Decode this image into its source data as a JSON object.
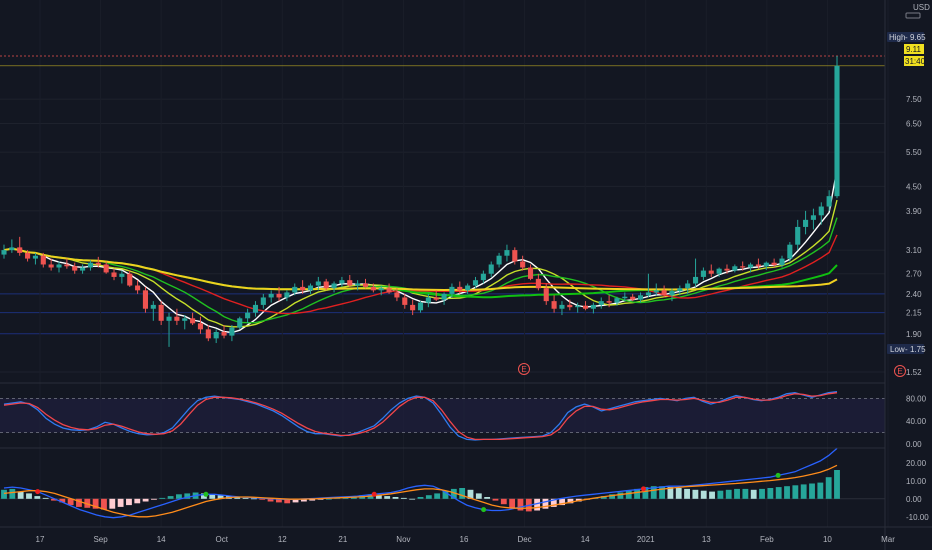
{
  "currency": "USD",
  "colors": {
    "background": "#131722",
    "up": "#26a69a",
    "down": "#ef5350",
    "ma_white": "#ffffff",
    "ma_yellow_green": "#c6e02a",
    "ma_green": "#20c020",
    "ma_red": "#e02020",
    "ma_long_green": "#10c010",
    "ma_long_yellow": "#f0d020",
    "stoch_k": "#2f7bf0",
    "stoch_d": "#f0454b",
    "macd": "#2962ff",
    "signal": "#ff8c1a"
  },
  "chart_data": [
    {
      "type": "candlestick",
      "scale": "log",
      "ylim": [
        1.45,
        11.5
      ],
      "y_ticks": [
        "1.52",
        "1.90",
        "2.15",
        "2.40",
        "2.70",
        "3.10",
        "3.90",
        "4.50",
        "5.50",
        "6.50",
        "7.50"
      ],
      "price_tags": [
        {
          "label": "High",
          "value": "9.65"
        },
        {
          "label": "",
          "value": "9.11"
        },
        {
          "label": "",
          "value": "31:40"
        },
        {
          "label": "Low",
          "value": "1.75"
        }
      ],
      "earnings_markers": [
        "E",
        "E"
      ],
      "x_ticks": [
        "17",
        "Sep",
        "14",
        "Oct",
        "12",
        "21",
        "Nov",
        "16",
        "Dec",
        "14",
        "2021",
        "13",
        "Feb",
        "10",
        "Mar"
      ],
      "ohlc": [
        [
          3.02,
          3.2,
          2.95,
          3.1
        ],
        [
          3.1,
          3.3,
          3.05,
          3.15
        ],
        [
          3.15,
          3.35,
          3.0,
          3.05
        ],
        [
          3.05,
          3.1,
          2.9,
          2.95
        ],
        [
          2.95,
          3.05,
          2.85,
          3.0
        ],
        [
          3.0,
          3.05,
          2.8,
          2.85
        ],
        [
          2.85,
          2.95,
          2.75,
          2.8
        ],
        [
          2.8,
          2.9,
          2.72,
          2.85
        ],
        [
          2.85,
          2.95,
          2.78,
          2.82
        ],
        [
          2.82,
          2.88,
          2.7,
          2.75
        ],
        [
          2.75,
          2.85,
          2.7,
          2.8
        ],
        [
          2.8,
          2.92,
          2.75,
          2.88
        ],
        [
          2.88,
          2.98,
          2.8,
          2.85
        ],
        [
          2.85,
          2.9,
          2.7,
          2.72
        ],
        [
          2.72,
          2.78,
          2.6,
          2.65
        ],
        [
          2.65,
          2.75,
          2.55,
          2.7
        ],
        [
          2.7,
          2.75,
          2.5,
          2.52
        ],
        [
          2.52,
          2.6,
          2.4,
          2.45
        ],
        [
          2.45,
          2.5,
          2.15,
          2.2
        ],
        [
          2.2,
          2.3,
          2.05,
          2.25
        ],
        [
          2.25,
          2.3,
          2.0,
          2.05
        ],
        [
          2.05,
          2.15,
          1.76,
          2.1
        ],
        [
          2.1,
          2.2,
          2.0,
          2.05
        ],
        [
          2.05,
          2.12,
          1.95,
          2.08
        ],
        [
          2.08,
          2.15,
          2.0,
          2.02
        ],
        [
          2.02,
          2.1,
          1.9,
          1.95
        ],
        [
          1.95,
          2.0,
          1.82,
          1.85
        ],
        [
          1.85,
          1.95,
          1.8,
          1.92
        ],
        [
          1.92,
          2.0,
          1.85,
          1.88
        ],
        [
          1.88,
          2.0,
          1.82,
          1.97
        ],
        [
          1.97,
          2.1,
          1.95,
          2.08
        ],
        [
          2.08,
          2.2,
          2.02,
          2.15
        ],
        [
          2.15,
          2.3,
          2.1,
          2.25
        ],
        [
          2.25,
          2.4,
          2.2,
          2.35
        ],
        [
          2.35,
          2.45,
          2.28,
          2.4
        ],
        [
          2.4,
          2.5,
          2.3,
          2.35
        ],
        [
          2.35,
          2.45,
          2.3,
          2.42
        ],
        [
          2.42,
          2.55,
          2.38,
          2.5
        ],
        [
          2.5,
          2.6,
          2.4,
          2.45
        ],
        [
          2.45,
          2.55,
          2.4,
          2.52
        ],
        [
          2.52,
          2.65,
          2.45,
          2.58
        ],
        [
          2.58,
          2.62,
          2.45,
          2.48
        ],
        [
          2.48,
          2.58,
          2.42,
          2.55
        ],
        [
          2.55,
          2.65,
          2.5,
          2.6
        ],
        [
          2.6,
          2.68,
          2.5,
          2.52
        ],
        [
          2.52,
          2.6,
          2.45,
          2.55
        ],
        [
          2.55,
          2.62,
          2.48,
          2.5
        ],
        [
          2.5,
          2.55,
          2.42,
          2.45
        ],
        [
          2.45,
          2.52,
          2.38,
          2.48
        ],
        [
          2.48,
          2.55,
          2.4,
          2.42
        ],
        [
          2.42,
          2.48,
          2.3,
          2.35
        ],
        [
          2.35,
          2.4,
          2.2,
          2.25
        ],
        [
          2.25,
          2.32,
          2.12,
          2.18
        ],
        [
          2.18,
          2.3,
          2.15,
          2.28
        ],
        [
          2.28,
          2.4,
          2.22,
          2.35
        ],
        [
          2.35,
          2.45,
          2.3,
          2.32
        ],
        [
          2.32,
          2.42,
          2.25,
          2.4
        ],
        [
          2.4,
          2.55,
          2.35,
          2.5
        ],
        [
          2.5,
          2.58,
          2.4,
          2.45
        ],
        [
          2.45,
          2.55,
          2.4,
          2.52
        ],
        [
          2.52,
          2.65,
          2.48,
          2.6
        ],
        [
          2.6,
          2.75,
          2.55,
          2.7
        ],
        [
          2.7,
          2.9,
          2.65,
          2.85
        ],
        [
          2.85,
          3.05,
          2.8,
          3.0
        ],
        [
          3.0,
          3.2,
          2.9,
          3.1
        ],
        [
          3.1,
          3.15,
          2.85,
          2.9
        ],
        [
          2.9,
          3.0,
          2.75,
          2.8
        ],
        [
          2.8,
          2.85,
          2.6,
          2.62
        ],
        [
          2.62,
          2.7,
          2.45,
          2.48
        ],
        [
          2.48,
          2.55,
          2.25,
          2.3
        ],
        [
          2.3,
          2.38,
          2.15,
          2.2
        ],
        [
          2.2,
          2.3,
          2.12,
          2.25
        ],
        [
          2.25,
          2.32,
          2.18,
          2.22
        ],
        [
          2.22,
          2.28,
          2.15,
          2.24
        ],
        [
          2.24,
          2.3,
          2.18,
          2.2
        ],
        [
          2.2,
          2.28,
          2.14,
          2.25
        ],
        [
          2.25,
          2.35,
          2.2,
          2.3
        ],
        [
          2.3,
          2.38,
          2.22,
          2.28
        ],
        [
          2.28,
          2.36,
          2.24,
          2.34
        ],
        [
          2.34,
          2.42,
          2.3,
          2.36
        ],
        [
          2.36,
          2.4,
          2.3,
          2.32
        ],
        [
          2.32,
          2.42,
          2.28,
          2.38
        ],
        [
          2.38,
          2.7,
          2.35,
          2.42
        ],
        [
          2.42,
          2.55,
          2.38,
          2.45
        ],
        [
          2.45,
          2.52,
          2.35,
          2.38
        ],
        [
          2.38,
          2.48,
          2.3,
          2.44
        ],
        [
          2.44,
          2.52,
          2.38,
          2.48
        ],
        [
          2.48,
          2.6,
          2.4,
          2.55
        ],
        [
          2.55,
          2.95,
          2.5,
          2.65
        ],
        [
          2.65,
          2.8,
          2.6,
          2.75
        ],
        [
          2.75,
          2.85,
          2.65,
          2.7
        ],
        [
          2.7,
          2.8,
          2.65,
          2.78
        ],
        [
          2.78,
          2.85,
          2.7,
          2.75
        ],
        [
          2.75,
          2.85,
          2.72,
          2.82
        ],
        [
          2.82,
          2.9,
          2.75,
          2.8
        ],
        [
          2.8,
          2.88,
          2.72,
          2.85
        ],
        [
          2.85,
          2.95,
          2.78,
          2.82
        ],
        [
          2.82,
          2.9,
          2.76,
          2.88
        ],
        [
          2.88,
          2.95,
          2.8,
          2.84
        ],
        [
          2.84,
          3.0,
          2.8,
          2.95
        ],
        [
          2.95,
          3.25,
          2.9,
          3.2
        ],
        [
          3.2,
          3.7,
          3.1,
          3.55
        ],
        [
          3.55,
          3.9,
          3.4,
          3.7
        ],
        [
          3.7,
          3.95,
          3.5,
          3.8
        ],
        [
          3.8,
          4.1,
          3.6,
          4.0
        ],
        [
          4.0,
          4.4,
          3.9,
          4.25
        ],
        [
          4.25,
          9.65,
          4.2,
          9.11
        ]
      ],
      "moving_averages": [
        {
          "name": "",
          "period": 5
        },
        {
          "name": "",
          "period": 9
        },
        {
          "name": "",
          "period": 13
        },
        {
          "name": "",
          "period": 20
        },
        {
          "name": "",
          "period": 50
        },
        {
          "name": "",
          "period": 100
        }
      ]
    },
    {
      "type": "line",
      "indicator_panel": "stochastic",
      "ylim": [
        0,
        100
      ],
      "y_ticks": [
        "0.00",
        "40.00",
        "80.00"
      ],
      "levels": [
        20,
        80
      ],
      "series": [
        {
          "name": "",
          "values": [
            70,
            72,
            74,
            70,
            60,
            45,
            35,
            28,
            25,
            24,
            25,
            30,
            38,
            35,
            28,
            22,
            18,
            16,
            17,
            20,
            28,
            45,
            62,
            76,
            82,
            84,
            82,
            80,
            78,
            74,
            70,
            64,
            58,
            50,
            40,
            30,
            22,
            18,
            18,
            16,
            14,
            16,
            20,
            26,
            32,
            45,
            60,
            72,
            80,
            84,
            82,
            72,
            52,
            30,
            14,
            8,
            7,
            8,
            8,
            9,
            10,
            11,
            12,
            13,
            14,
            20,
            35,
            55,
            65,
            70,
            65,
            58,
            62,
            66,
            70,
            74,
            76,
            78,
            80,
            78,
            76,
            80,
            82,
            75,
            70,
            74,
            80,
            85,
            82,
            78,
            76,
            78,
            82,
            88,
            90,
            86,
            82,
            86,
            90,
            92
          ]
        },
        {
          "name": "",
          "values": [
            68,
            70,
            72,
            71,
            64,
            52,
            42,
            34,
            29,
            26,
            25,
            27,
            33,
            35,
            31,
            26,
            21,
            18,
            17,
            18,
            23,
            35,
            52,
            68,
            78,
            82,
            82,
            81,
            79,
            76,
            72,
            67,
            61,
            54,
            45,
            36,
            28,
            22,
            19,
            17,
            15,
            15,
            18,
            22,
            28,
            38,
            52,
            66,
            76,
            82,
            82,
            76,
            60,
            40,
            22,
            12,
            8,
            8,
            8,
            8,
            9,
            10,
            11,
            12,
            13,
            16,
            26,
            45,
            58,
            66,
            66,
            61,
            60,
            63,
            67,
            71,
            74,
            76,
            78,
            78,
            77,
            78,
            80,
            77,
            73,
            73,
            77,
            82,
            82,
            79,
            77,
            77,
            80,
            85,
            88,
            87,
            84,
            85,
            88,
            90
          ]
        }
      ]
    },
    {
      "type": "bar",
      "indicator_panel": "macd",
      "ylim": [
        -14,
        26
      ],
      "y_ticks": [
        "-10.00",
        "0.00",
        "10.00",
        "20.00"
      ],
      "histogram": [
        5,
        5.5,
        4,
        3,
        1.5,
        0.5,
        -1,
        -2,
        -3.5,
        -4.5,
        -5,
        -5.5,
        -6,
        -5.5,
        -4.5,
        -3.5,
        -2.5,
        -1.5,
        -0.5,
        0.5,
        1.5,
        2.5,
        3,
        3.5,
        3,
        2.5,
        2,
        1.5,
        1,
        0.5,
        0.2,
        -0.5,
        -1.5,
        -2,
        -2.5,
        -2,
        -1.5,
        -1,
        -0.5,
        0,
        0.5,
        1,
        1.5,
        2,
        2.5,
        2,
        1.5,
        1,
        0.5,
        0,
        1,
        2,
        3,
        4.5,
        5.5,
        6,
        5,
        3,
        1,
        -1,
        -3,
        -5,
        -6.5,
        -7,
        -6.5,
        -5.5,
        -4.5,
        -3.5,
        -2.5,
        -1.5,
        -0.5,
        0.5,
        1.5,
        2.5,
        3.5,
        4.5,
        5.5,
        6.5,
        7,
        7,
        6.5,
        6,
        5.5,
        5,
        4.5,
        4,
        4.5,
        5,
        5.5,
        5.5,
        5,
        5.5,
        6,
        6.5,
        7,
        7.5,
        8,
        8.5,
        9,
        12,
        16
      ],
      "series": [
        {
          "name": "",
          "values": [
            6,
            6.5,
            6,
            5,
            4,
            2,
            0,
            -2,
            -4,
            -6,
            -7.5,
            -9,
            -10,
            -10.5,
            -10,
            -9,
            -7.5,
            -6,
            -4.5,
            -3,
            -1.5,
            0,
            1,
            2,
            2.5,
            2.5,
            2,
            1.5,
            1,
            0.8,
            0.5,
            0.2,
            0,
            -0.2,
            -0.3,
            -0.2,
            0,
            0.2,
            0.5,
            0.8,
            1,
            1.2,
            1.5,
            2,
            2.5,
            3,
            3.5,
            4.5,
            6,
            7,
            7.5,
            7,
            5,
            2,
            -1,
            -3.5,
            -5,
            -6,
            -6.5,
            -6.5,
            -6,
            -5,
            -4,
            -3,
            -2,
            -1,
            0,
            0.8,
            1.5,
            2,
            2.5,
            3,
            3.5,
            4,
            4.5,
            5,
            5.5,
            6,
            6.5,
            7,
            7,
            7,
            7.5,
            8,
            8.5,
            9,
            9.5,
            10,
            10.5,
            11,
            11.5,
            12,
            13,
            14,
            15,
            17,
            19,
            21,
            24,
            28
          ]
        },
        {
          "name": "",
          "values": [
            3,
            3.5,
            4,
            4.5,
            4.5,
            4,
            3,
            1.5,
            0,
            -1.5,
            -3,
            -4.5,
            -6,
            -7.5,
            -8.5,
            -9.5,
            -10,
            -10,
            -9.5,
            -8.5,
            -7.5,
            -6,
            -4.5,
            -3,
            -1.5,
            -0.5,
            0.3,
            0.8,
            1,
            1,
            0.8,
            0.5,
            0.3,
            0,
            -0.2,
            -0.2,
            -0.1,
            0,
            0.2,
            0.4,
            0.6,
            0.8,
            1,
            1.3,
            1.7,
            2.2,
            2.8,
            3.5,
            4.3,
            5,
            5.5,
            5.5,
            5,
            4,
            2.5,
            1,
            -0.5,
            -2,
            -3.5,
            -4.5,
            -5,
            -5.2,
            -5.2,
            -5,
            -4.5,
            -3.8,
            -3,
            -2.2,
            -1.3,
            -0.5,
            0.3,
            1,
            1.6,
            2.2,
            2.8,
            3.4,
            4,
            4.6,
            5.2,
            5.8,
            6.3,
            6.7,
            7,
            7.3,
            7.6,
            7.9,
            8.2,
            8.5,
            8.9,
            9.3,
            9.7,
            10.1,
            10.6,
            11.1,
            11.8,
            12.6,
            13.6,
            14.8,
            16.4,
            18.6
          ]
        }
      ],
      "markers": [
        {
          "index": 4,
          "kind": "down"
        },
        {
          "index": 24,
          "kind": "up"
        },
        {
          "index": 44,
          "kind": "down"
        },
        {
          "index": 57,
          "kind": "up"
        },
        {
          "index": 76,
          "kind": "down"
        },
        {
          "index": 92,
          "kind": "up"
        }
      ]
    }
  ]
}
